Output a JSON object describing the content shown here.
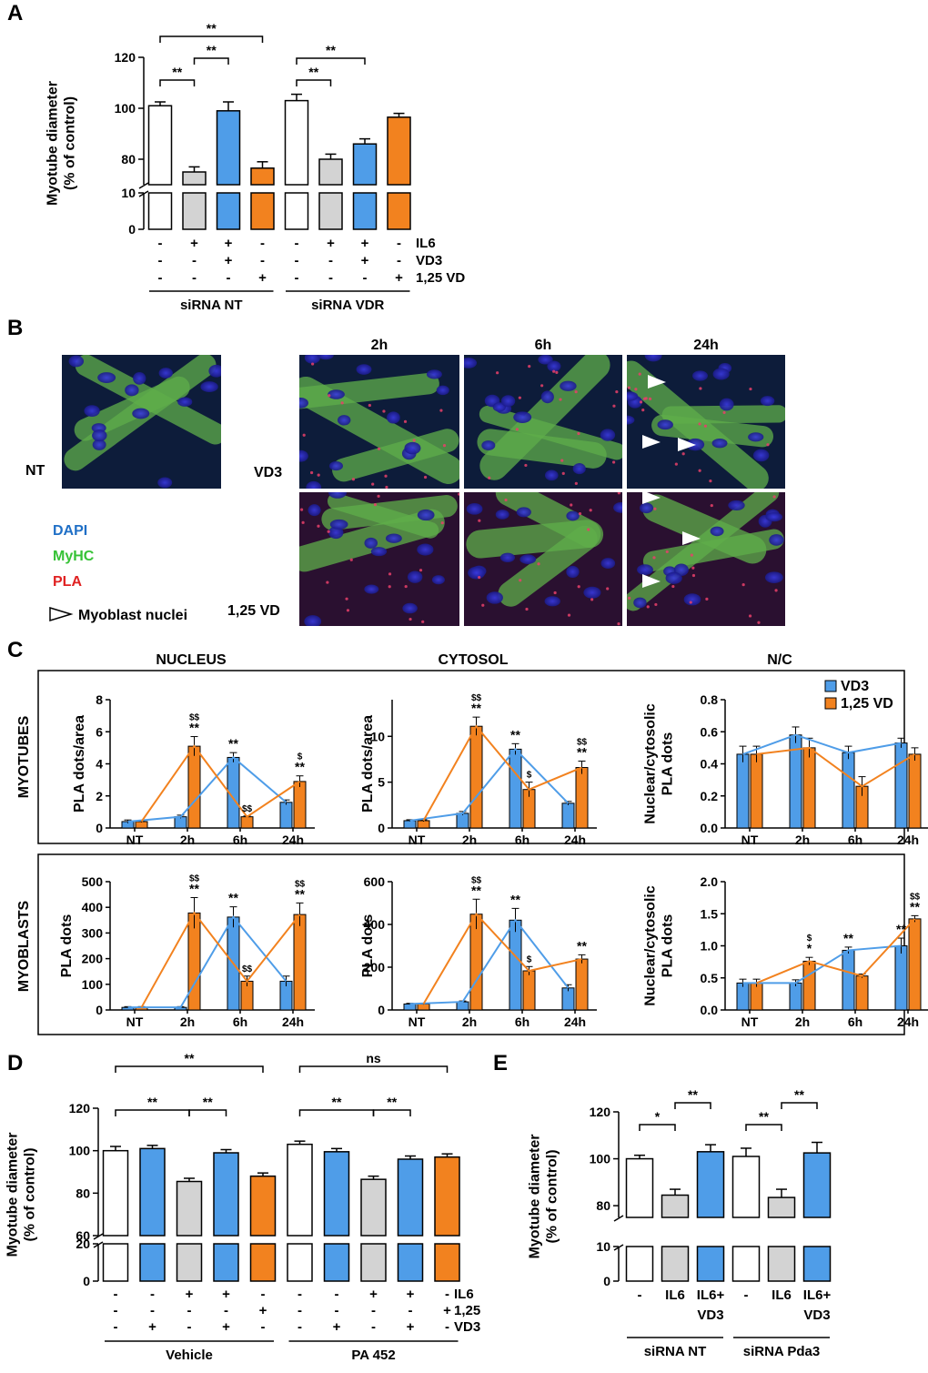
{
  "colors": {
    "white_bar": "#ffffff",
    "grey_bar": "#d3d3d3",
    "blue": "#4f9de8",
    "orange": "#f2821f",
    "legend_dapi": "#1f6fc6",
    "legend_myhc": "#36c236",
    "legend_pla": "#e02222"
  },
  "panel_labels": {
    "a": "A",
    "b": "B",
    "c": "C",
    "d": "D",
    "e": "E"
  },
  "chart_data": [
    {
      "id": "A",
      "type": "bar",
      "ylabel": "Myotube diameter\n(% of control)",
      "yaxis_break": {
        "lower": [
          0,
          10
        ],
        "upper": [
          70,
          120
        ]
      },
      "yticks_upper": [
        80,
        100,
        120
      ],
      "yticks_lower": [
        0,
        10
      ],
      "bars": [
        {
          "value": 101,
          "error": 1.5,
          "color": "white"
        },
        {
          "value": 75,
          "error": 2,
          "color": "grey"
        },
        {
          "value": 99,
          "error": 3.5,
          "color": "blue"
        },
        {
          "value": 76.5,
          "error": 2.5,
          "color": "orange"
        },
        {
          "value": 103,
          "error": 2.5,
          "color": "white"
        },
        {
          "value": 80,
          "error": 2,
          "color": "grey"
        },
        {
          "value": 86,
          "error": 2,
          "color": "blue"
        },
        {
          "value": 96.5,
          "error": 1.5,
          "color": "orange"
        }
      ],
      "brackets": [
        {
          "from": 0,
          "to": 1,
          "label": "**",
          "level": 0
        },
        {
          "from": 1,
          "to": 2,
          "label": "**",
          "level": 1
        },
        {
          "from": 0,
          "to": 3,
          "label": "**",
          "level": 2
        },
        {
          "from": 4,
          "to": 5,
          "label": "**",
          "level": 0
        },
        {
          "from": 4,
          "to": 6,
          "label": "**",
          "level": 1
        }
      ],
      "condition_rows": [
        {
          "label": "IL6",
          "values": [
            "-",
            "+",
            "+",
            "-",
            "-",
            "+",
            "+",
            "-"
          ]
        },
        {
          "label": "VD3",
          "values": [
            "-",
            "-",
            "+",
            "-",
            "-",
            "-",
            "+",
            "-"
          ]
        },
        {
          "label": "1,25 VD",
          "values": [
            "-",
            "-",
            "-",
            "+",
            "-",
            "-",
            "-",
            "+"
          ]
        }
      ],
      "groups": [
        {
          "label": "siRNA NT",
          "bars": [
            0,
            3
          ]
        },
        {
          "label": "siRNA VDR",
          "bars": [
            4,
            7
          ]
        }
      ]
    },
    {
      "id": "C",
      "type": "bar",
      "column_titles": [
        "NUCLEUS",
        "CYTOSOL",
        "N/C"
      ],
      "row_titles": [
        "MYOTUBES",
        "MYOBLASTS"
      ],
      "categories": [
        "NT",
        "2h",
        "6h",
        "24h"
      ],
      "legend": [
        {
          "name": "VD3",
          "color": "blue"
        },
        {
          "name": "1,25 VD",
          "color": "orange"
        }
      ],
      "subplots": [
        {
          "ylabel": "PLA dots/area",
          "ylim": [
            0,
            8
          ],
          "yticks": [
            0,
            2,
            4,
            6,
            8
          ],
          "vd3": [
            0.4,
            0.7,
            4.4,
            1.6
          ],
          "vd3_err": [
            0.1,
            0.1,
            0.3,
            0.15
          ],
          "vd125": [
            0.4,
            5.1,
            0.7,
            2.9
          ],
          "vd125_err": [
            0.05,
            0.6,
            0.05,
            0.35
          ],
          "marks": [
            {
              "cat": 1,
              "series": "vd125",
              "stars": "**",
              "dollars": "$$"
            },
            {
              "cat": 2,
              "series": "vd3",
              "stars": "**",
              "dollars": ""
            },
            {
              "cat": 2,
              "series": "vd125",
              "stars": "",
              "dollars": "$$"
            },
            {
              "cat": 3,
              "series": "vd125",
              "stars": "**",
              "dollars": "$"
            }
          ]
        },
        {
          "ylabel": "PLA dots/area",
          "ylim": [
            0,
            14
          ],
          "yticks": [
            0,
            5,
            10
          ],
          "vd3": [
            0.8,
            1.6,
            8.6,
            2.7
          ],
          "vd3_err": [
            0.1,
            0.2,
            0.6,
            0.2
          ],
          "vd125": [
            0.8,
            11.1,
            4.2,
            6.6
          ],
          "vd125_err": [
            0.1,
            1.0,
            0.8,
            0.7
          ],
          "marks": [
            {
              "cat": 1,
              "series": "vd125",
              "stars": "**",
              "dollars": "$$"
            },
            {
              "cat": 2,
              "series": "vd3",
              "stars": "**",
              "dollars": ""
            },
            {
              "cat": 2,
              "series": "vd125",
              "stars": "",
              "dollars": "$"
            },
            {
              "cat": 3,
              "series": "vd125",
              "stars": "**",
              "dollars": "$$"
            }
          ]
        },
        {
          "ylabel": "Nuclear/cytosolic\nPLA dots",
          "ylim": [
            0,
            0.8
          ],
          "yticks": [
            0.0,
            0.2,
            0.4,
            0.6,
            0.8
          ],
          "vd3": [
            0.46,
            0.58,
            0.47,
            0.53
          ],
          "vd3_err": [
            0.05,
            0.05,
            0.04,
            0.03
          ],
          "vd125": [
            0.46,
            0.5,
            0.26,
            0.46
          ],
          "vd125_err": [
            0.05,
            0.06,
            0.06,
            0.04
          ],
          "marks": []
        },
        {
          "ylabel": "PLA dots",
          "ylim": [
            0,
            500
          ],
          "yticks": [
            0,
            100,
            200,
            300,
            400,
            500
          ],
          "vd3": [
            10,
            10,
            362,
            112
          ],
          "vd3_err": [
            3,
            3,
            40,
            20
          ],
          "vd125": [
            10,
            378,
            112,
            372
          ],
          "vd125_err": [
            3,
            60,
            20,
            45
          ],
          "marks": [
            {
              "cat": 1,
              "series": "vd125",
              "stars": "**",
              "dollars": "$$"
            },
            {
              "cat": 2,
              "series": "vd3",
              "stars": "**",
              "dollars": ""
            },
            {
              "cat": 2,
              "series": "vd125",
              "stars": "",
              "dollars": "$$"
            },
            {
              "cat": 3,
              "series": "vd125",
              "stars": "**",
              "dollars": "$$"
            }
          ]
        },
        {
          "ylabel": "PLA dots",
          "ylim": [
            0,
            600
          ],
          "yticks": [
            0,
            200,
            400,
            600
          ],
          "vd3": [
            28,
            38,
            420,
            103
          ],
          "vd3_err": [
            3,
            4,
            55,
            15
          ],
          "vd125": [
            28,
            448,
            183,
            238
          ],
          "vd125_err": [
            3,
            70,
            20,
            20
          ],
          "marks": [
            {
              "cat": 1,
              "series": "vd125",
              "stars": "**",
              "dollars": "$$"
            },
            {
              "cat": 2,
              "series": "vd3",
              "stars": "**",
              "dollars": ""
            },
            {
              "cat": 2,
              "series": "vd125",
              "stars": "",
              "dollars": "$"
            },
            {
              "cat": 3,
              "series": "vd125",
              "stars": "**",
              "dollars": ""
            }
          ]
        },
        {
          "ylabel": "Nuclear/cytosolic\nPLA dots",
          "ylim": [
            0,
            2.0
          ],
          "yticks": [
            0.0,
            0.5,
            1.0,
            1.5,
            2.0
          ],
          "vd3": [
            0.42,
            0.42,
            0.93,
            1.0
          ],
          "vd3_err": [
            0.06,
            0.05,
            0.05,
            0.12
          ],
          "vd125": [
            0.42,
            0.76,
            0.53,
            1.42
          ],
          "vd125_err": [
            0.06,
            0.06,
            0.03,
            0.05
          ],
          "marks": [
            {
              "cat": 1,
              "series": "vd125",
              "stars": "*",
              "dollars": "$"
            },
            {
              "cat": 2,
              "series": "vd3",
              "stars": "**",
              "dollars": ""
            },
            {
              "cat": 3,
              "series": "vd3",
              "stars": "**",
              "dollars": ""
            },
            {
              "cat": 3,
              "series": "vd125",
              "stars": "**",
              "dollars": "$$"
            }
          ]
        }
      ]
    },
    {
      "id": "D",
      "type": "bar",
      "ylabel": "Myotube diameter\n(% of control)",
      "yaxis_break": {
        "lower": [
          0,
          20
        ],
        "upper": [
          60,
          120
        ]
      },
      "yticks_upper": [
        60,
        80,
        100,
        120
      ],
      "yticks_lower": [
        0,
        20
      ],
      "bars": [
        {
          "value": 100,
          "error": 2,
          "color": "white"
        },
        {
          "value": 101,
          "error": 1.5,
          "color": "blue"
        },
        {
          "value": 85.5,
          "error": 1.5,
          "color": "grey"
        },
        {
          "value": 99,
          "error": 1.5,
          "color": "blue"
        },
        {
          "value": 88,
          "error": 1.5,
          "color": "orange"
        },
        {
          "value": 103,
          "error": 1.5,
          "color": "white"
        },
        {
          "value": 99.5,
          "error": 1.5,
          "color": "blue"
        },
        {
          "value": 86.5,
          "error": 1.5,
          "color": "grey"
        },
        {
          "value": 96,
          "error": 1.5,
          "color": "blue"
        },
        {
          "value": 97,
          "error": 1.5,
          "color": "orange"
        }
      ],
      "brackets": [
        {
          "from": 0,
          "to": 2,
          "label": "**",
          "level": 0
        },
        {
          "from": 2,
          "to": 3,
          "label": "**",
          "level": 0
        },
        {
          "from": 0,
          "to": 4,
          "label": "**",
          "level": 2
        },
        {
          "from": 5,
          "to": 7,
          "label": "**",
          "level": 0
        },
        {
          "from": 7,
          "to": 8,
          "label": "**",
          "level": 0
        },
        {
          "from": 5,
          "to": 9,
          "label": "ns",
          "level": 2
        }
      ],
      "condition_rows": [
        {
          "label": "IL6",
          "values": [
            "-",
            "-",
            "+",
            "+",
            "-",
            "-",
            "-",
            "+",
            "+",
            "-"
          ]
        },
        {
          "label": "1,25",
          "values": [
            "-",
            "-",
            "-",
            "-",
            "+",
            "-",
            "-",
            "-",
            "-",
            "+"
          ]
        },
        {
          "label": "VD3",
          "values": [
            "-",
            "+",
            "-",
            "+",
            "-",
            "-",
            "+",
            "-",
            "+",
            "-"
          ]
        }
      ],
      "groups": [
        {
          "label": "Vehicle",
          "bars": [
            0,
            4
          ]
        },
        {
          "label": "PA 452",
          "bars": [
            5,
            9
          ]
        }
      ]
    },
    {
      "id": "E",
      "type": "bar",
      "ylabel": "Myotube diameter\n(% of control)",
      "yaxis_break": {
        "lower": [
          0,
          10
        ],
        "upper": [
          75,
          120
        ]
      },
      "yticks_upper": [
        80,
        100,
        120
      ],
      "yticks_lower": [
        0,
        10
      ],
      "bars": [
        {
          "value": 100,
          "error": 1.5,
          "color": "white"
        },
        {
          "value": 84.5,
          "error": 2.5,
          "color": "grey"
        },
        {
          "value": 103,
          "error": 3,
          "color": "blue"
        },
        {
          "value": 101,
          "error": 3.5,
          "color": "white"
        },
        {
          "value": 83.5,
          "error": 3.5,
          "color": "grey"
        },
        {
          "value": 102.5,
          "error": 4.5,
          "color": "blue"
        }
      ],
      "brackets": [
        {
          "from": 0,
          "to": 1,
          "label": "*",
          "level": 0
        },
        {
          "from": 1,
          "to": 2,
          "label": "**",
          "level": 1
        },
        {
          "from": 3,
          "to": 4,
          "label": "**",
          "level": 0
        },
        {
          "from": 4,
          "to": 5,
          "label": "**",
          "level": 1
        }
      ],
      "xlabels": [
        "-",
        "IL6",
        "IL6+\nVD3",
        "-",
        "IL6",
        "IL6+\nVD3"
      ],
      "groups": [
        {
          "label": "siRNA NT",
          "bars": [
            0,
            2
          ]
        },
        {
          "label": "siRNA Pda3",
          "bars": [
            3,
            5
          ]
        }
      ]
    }
  ],
  "panel_b": {
    "column_labels": [
      "2h",
      "6h",
      "24h"
    ],
    "row_labels": [
      "NT",
      "VD3",
      "1,25 VD"
    ],
    "legend": [
      {
        "label": "DAPI",
        "color": "legend_dapi"
      },
      {
        "label": "MyHC",
        "color": "legend_myhc"
      },
      {
        "label": "PLA",
        "color": "legend_pla"
      },
      {
        "label": "Myoblast nuclei",
        "color": "#000000"
      }
    ]
  }
}
